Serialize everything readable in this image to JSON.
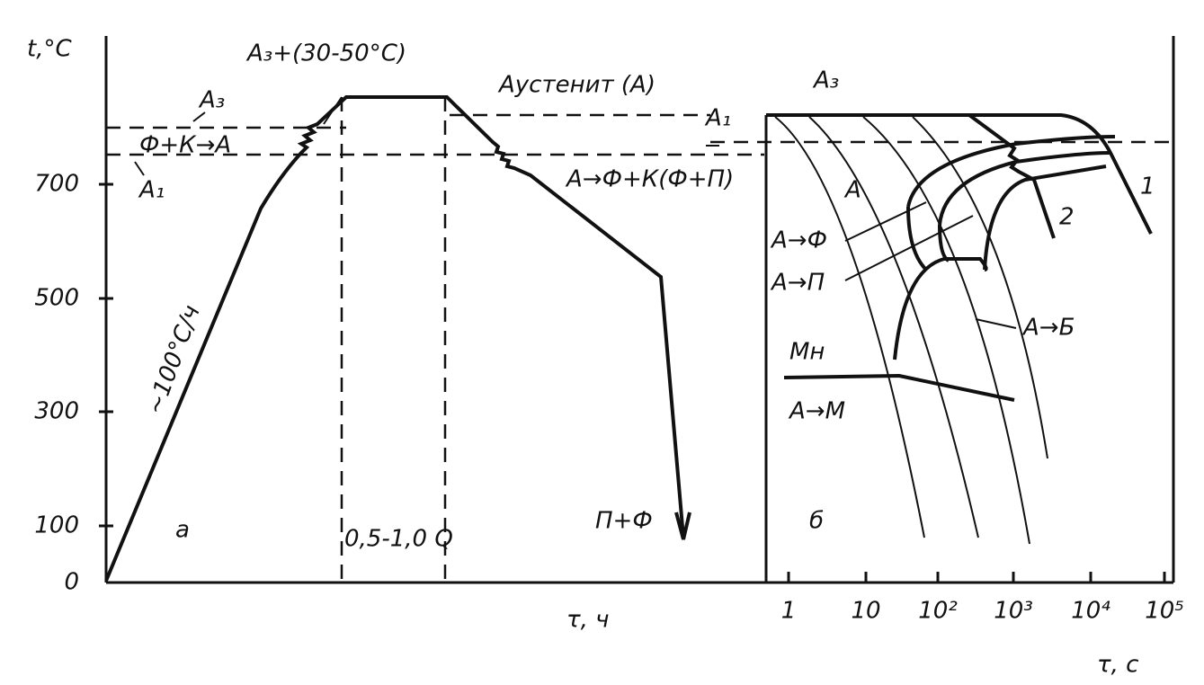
{
  "axes": {
    "y_label": "t,°C",
    "x_label_left": "τ, ч",
    "x_label_right": "τ, с",
    "y_ticks": [
      "0",
      "100",
      "300",
      "500",
      "700"
    ],
    "x_ticks_right": [
      "1",
      "10",
      "10²",
      "10³",
      "10⁴",
      "10⁵"
    ]
  },
  "left_panel": {
    "panel_letter": "а",
    "top_label": "А₃+(30-50°С)",
    "phase_label": "Аустенит (А)",
    "a3": "А₃",
    "transformation": "Ф+К→А",
    "a1": "А₁",
    "cooling": "А→Ф+К(Ф+П)",
    "hold": "0,5-1,0 Q",
    "result": "П+Ф",
    "rate": "~100°С/ч"
  },
  "right_panel": {
    "panel_letter": "б",
    "a3": "А₃",
    "a1": "А₁",
    "austenite": "А",
    "a_to_f": "А→Ф",
    "a_to_p": "А→П",
    "a_to_b": "А→Б",
    "mn": "Мн",
    "a_to_m": "А→М",
    "curve_1": "1",
    "curve_2": "2"
  }
}
